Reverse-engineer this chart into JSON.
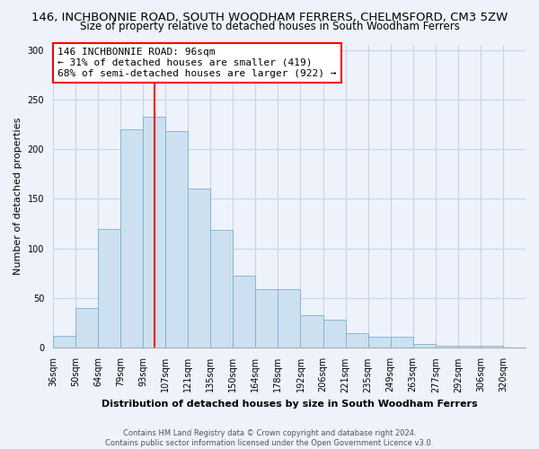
{
  "title": "146, INCHBONNIE ROAD, SOUTH WOODHAM FERRERS, CHELMSFORD, CM3 5ZW",
  "subtitle": "Size of property relative to detached houses in South Woodham Ferrers",
  "xlabel": "Distribution of detached houses by size in South Woodham Ferrers",
  "ylabel": "Number of detached properties",
  "bin_labels": [
    "36sqm",
    "50sqm",
    "64sqm",
    "79sqm",
    "93sqm",
    "107sqm",
    "121sqm",
    "135sqm",
    "150sqm",
    "164sqm",
    "178sqm",
    "192sqm",
    "206sqm",
    "221sqm",
    "235sqm",
    "249sqm",
    "263sqm",
    "277sqm",
    "292sqm",
    "306sqm",
    "320sqm"
  ],
  "bar_heights": [
    12,
    40,
    120,
    220,
    233,
    218,
    160,
    119,
    73,
    59,
    59,
    33,
    28,
    15,
    11,
    11,
    4,
    2,
    2,
    2,
    0
  ],
  "bar_color": "#cce0f0",
  "bar_edge_color": "#7ab0d4",
  "vline_x_bin": 4,
  "vline_color": "red",
  "annotation_title": "146 INCHBONNIE ROAD: 96sqm",
  "annotation_line1": "← 31% of detached houses are smaller (419)",
  "annotation_line2": "68% of semi-detached houses are larger (922) →",
  "annotation_box_color": "white",
  "annotation_box_edge": "red",
  "ylim": [
    0,
    305
  ],
  "yticks": [
    0,
    50,
    100,
    150,
    200,
    250,
    300
  ],
  "footer1": "Contains HM Land Registry data © Crown copyright and database right 2024.",
  "footer2": "Contains public sector information licensed under the Open Government Licence v3.0.",
  "background_color": "#eef2fb",
  "grid_color": "#c8d4e8",
  "title_fontsize": 9.5,
  "subtitle_fontsize": 8.5,
  "xlabel_fontsize": 8,
  "ylabel_fontsize": 8,
  "tick_fontsize": 7,
  "footer_fontsize": 6,
  "annotation_fontsize": 8
}
